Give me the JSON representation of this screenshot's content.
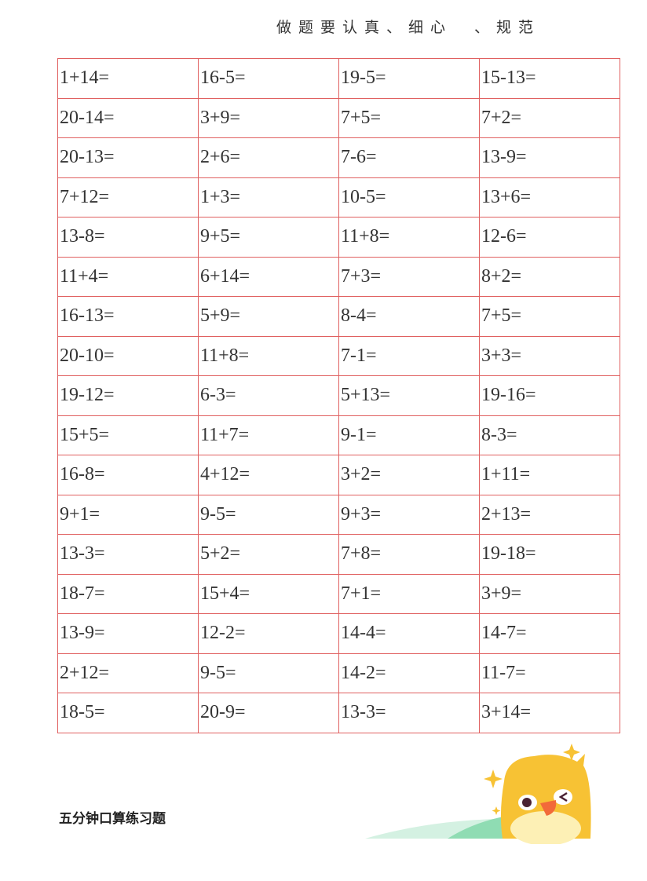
{
  "header": {
    "title": "做题要认真、细心　、规范"
  },
  "rows": [
    [
      "1+14=",
      "16-5=",
      "19-5=",
      "15-13="
    ],
    [
      "20-14=",
      "3+9=",
      "7+5=",
      "7+2="
    ],
    [
      "20-13=",
      "2+6=",
      "7-6=",
      "13-9="
    ],
    [
      "7+12=",
      "1+3=",
      "10-5=",
      "13+6="
    ],
    [
      "13-8=",
      "9+5=",
      "11+8=",
      "12-6="
    ],
    [
      "11+4=",
      "6+14=",
      "7+3=",
      "8+2="
    ],
    [
      "16-13=",
      "5+9=",
      "8-4=",
      "7+5="
    ],
    [
      "20-10=",
      "11+8=",
      "7-1=",
      "3+3="
    ],
    [
      "19-12=",
      "6-3=",
      "5+13=",
      "19-16="
    ],
    [
      "15+5=",
      "11+7=",
      "9-1=",
      "8-3="
    ],
    [
      "16-8=",
      "4+12=",
      "3+2=",
      "1+11="
    ],
    [
      "9+1=",
      "9-5=",
      "9+3=",
      "2+13="
    ],
    [
      "13-3=",
      "5+2=",
      "7+8=",
      "19-18="
    ],
    [
      "18-7=",
      "15+4=",
      "7+1=",
      "3+9="
    ],
    [
      "13-9=",
      "12-2=",
      "14-4=",
      "14-7="
    ],
    [
      "2+12=",
      "9-5=",
      "14-2=",
      "11-7="
    ],
    [
      "18-5=",
      "20-9=",
      "13-3=",
      "3+14="
    ]
  ],
  "footer": {
    "label": "五分钟口算练习题"
  },
  "colors": {
    "grid": "#e06060",
    "mascot": "#f7c234",
    "hill": "#7fd6a8"
  },
  "icons": {
    "mascot": "yellow-chick-mascot-icon"
  }
}
